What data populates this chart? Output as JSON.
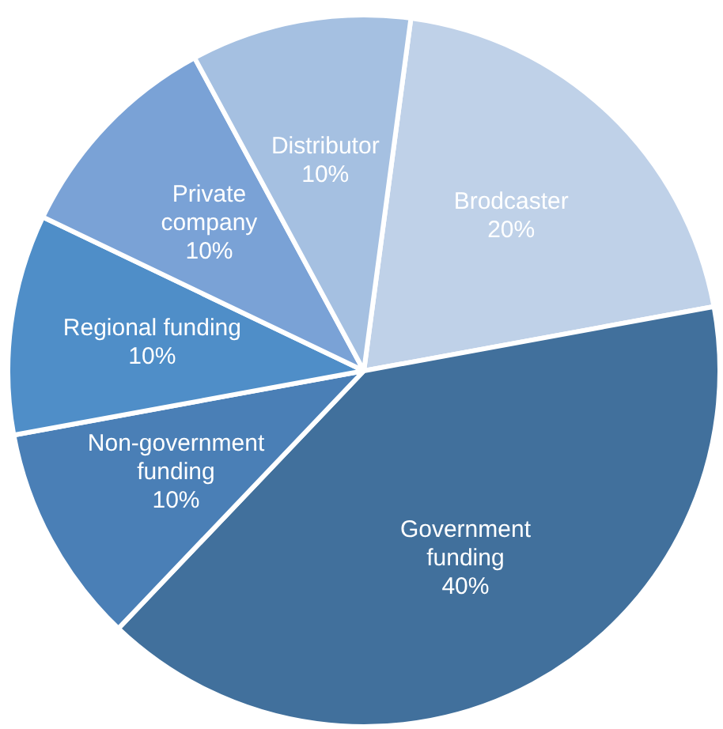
{
  "chart_data": {
    "type": "pie",
    "categories": [
      "Brodcaster",
      "Government\nfunding",
      "Non-government\nfunding",
      "Regional funding",
      "Private\ncompany",
      "Distributor"
    ],
    "values": [
      20,
      40,
      10,
      10,
      10,
      10
    ],
    "value_labels": [
      "20%",
      "40%",
      "10%",
      "10%",
      "10%",
      "10%"
    ],
    "colors": [
      "#bfd1e8",
      "#41709c",
      "#4a7fb6",
      "#4f8ec8",
      "#7aa2d6",
      "#a5c0e1"
    ],
    "legend": false
  }
}
